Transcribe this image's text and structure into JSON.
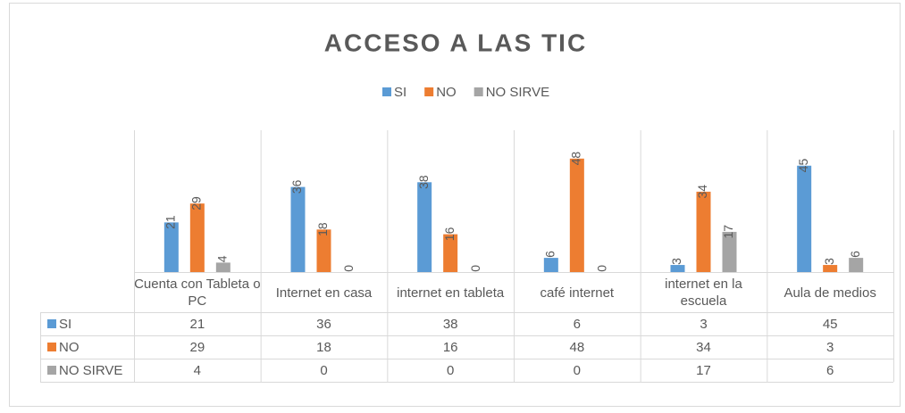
{
  "chart_data": {
    "type": "bar",
    "title": "ACCESO A LAS TIC",
    "categories": [
      "Cuenta con Tableta o PC",
      "Internet en casa",
      "internet en tableta",
      "café internet",
      "internet en la escuela",
      "Aula de medios"
    ],
    "series": [
      {
        "name": "SI",
        "color": "#5b9bd5",
        "values": [
          21,
          36,
          38,
          6,
          3,
          45
        ]
      },
      {
        "name": "NO",
        "color": "#ed7d31",
        "values": [
          29,
          18,
          16,
          48,
          34,
          3
        ]
      },
      {
        "name": "NO SIRVE",
        "color": "#a5a5a5",
        "values": [
          4,
          0,
          0,
          0,
          17,
          6
        ]
      }
    ],
    "ylim": [
      0,
      60
    ]
  }
}
